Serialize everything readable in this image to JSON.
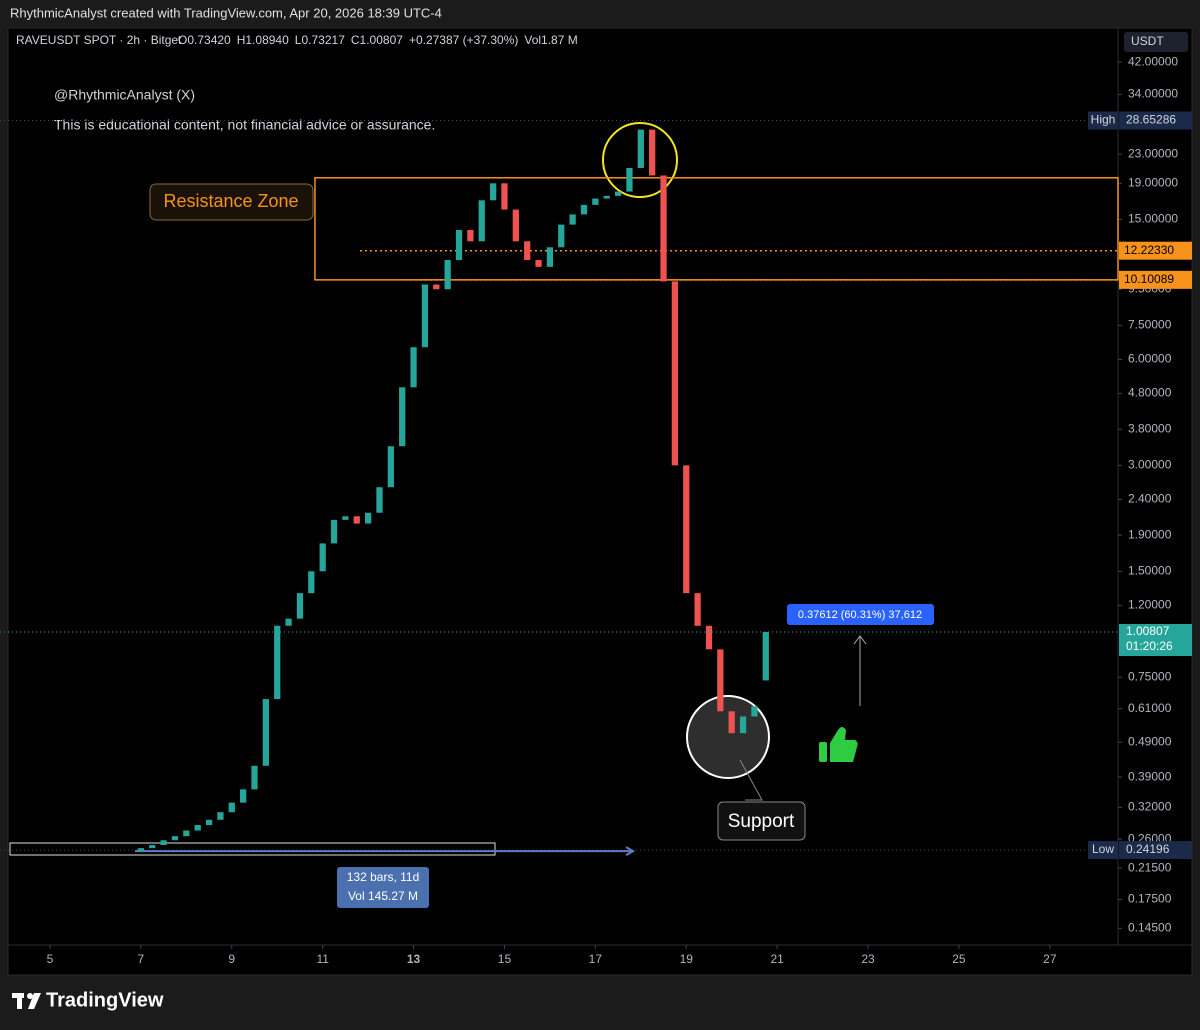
{
  "chart_data": {
    "type": "candlestick",
    "title": "RhythmicAnalyst created with TradingView.com, Apr 20, 2026 18:39 UTC-4",
    "symbol": "RAVEUSDT SPOT · 2h · Bitget",
    "legend_fields": [
      {
        "key": "O",
        "value": "0.73420"
      },
      {
        "key": "H",
        "value": "1.08940"
      },
      {
        "key": "L",
        "value": "0.73217"
      },
      {
        "key": "C",
        "value": "1.00807"
      }
    ],
    "change": "+0.27387 (+37.30%)",
    "volume": {
      "key": "Vol",
      "value": "1.87 M"
    },
    "currency": "USDT",
    "notes": [
      "@RhythmicAnalyst (X)",
      "This is educational content, not financial advice or assurance."
    ],
    "x": [
      7,
      7.25,
      7.5,
      7.75,
      8,
      8.25,
      8.5,
      8.75,
      9,
      9.25,
      9.5,
      9.75,
      10,
      10.25,
      10.5,
      10.75,
      11,
      11.25,
      11.5,
      11.75,
      12,
      12.25,
      12.5,
      12.75,
      13,
      13.25,
      13.5,
      13.75,
      14,
      14.25,
      14.5,
      14.75,
      15,
      15.25,
      15.5,
      15.75,
      16,
      16.25,
      16.5,
      16.75,
      17,
      17.25,
      17.5,
      17.75,
      18,
      18.25,
      18.5,
      18.75,
      19,
      19.25,
      19.5,
      19.75,
      20,
      20.25,
      20.5,
      20.75
    ],
    "open": [
      0.24,
      0.245,
      0.25,
      0.258,
      0.265,
      0.275,
      0.285,
      0.295,
      0.31,
      0.33,
      0.36,
      0.42,
      0.65,
      1.05,
      1.1,
      1.3,
      1.5,
      1.8,
      2.1,
      2.15,
      2.05,
      2.2,
      2.6,
      3.4,
      5,
      6.5,
      9.8,
      9.5,
      11.5,
      14,
      13,
      17,
      19,
      16,
      13,
      11.5,
      11,
      12.5,
      14.5,
      15.5,
      16.5,
      17.2,
      17.5,
      18,
      21,
      27,
      20,
      10,
      3,
      1.3,
      1.05,
      0.9,
      0.6,
      0.52,
      0.58,
      0.7342
    ],
    "high": {
      "name": "High",
      "value": 28.65286
    },
    "low": {
      "name": "Low",
      "value": 0.24196
    },
    "close": [
      0.245,
      0.25,
      0.258,
      0.265,
      0.275,
      0.285,
      0.295,
      0.31,
      0.33,
      0.36,
      0.42,
      0.65,
      1.05,
      1.1,
      1.3,
      1.5,
      1.8,
      2.1,
      2.15,
      2.05,
      2.2,
      2.6,
      3.4,
      5,
      6.5,
      9.8,
      9.5,
      11.5,
      14,
      13,
      17,
      19,
      16,
      13,
      11.5,
      11,
      12.5,
      14.5,
      15.5,
      16.5,
      17.2,
      17.5,
      18,
      21,
      27,
      20,
      10,
      3,
      1.3,
      1.05,
      0.9,
      0.6,
      0.52,
      0.58,
      0.62,
      1.00807
    ],
    "up_color": "#26a69a",
    "down_color": "#ef5350",
    "log_scale": true,
    "xlim": [
      3.9,
      28.5
    ],
    "xticks": [
      5,
      7,
      9,
      11,
      13,
      15,
      17,
      19,
      21,
      23,
      25,
      27
    ],
    "ylim": [
      0.13,
      52.5
    ],
    "yticks": [
      {
        "value": 42,
        "label": "42.00000"
      },
      {
        "value": 34,
        "label": "34.00000"
      },
      {
        "value": 23,
        "label": "23.00000"
      },
      {
        "value": 19,
        "label": "19.00000"
      },
      {
        "value": 15,
        "label": "15.00000"
      },
      {
        "value": 9.5,
        "label": "9.50000"
      },
      {
        "value": 7.5,
        "label": "7.50000"
      },
      {
        "value": 6,
        "label": "6.00000"
      },
      {
        "value": 4.8,
        "label": "4.80000"
      },
      {
        "value": 3.8,
        "label": "3.80000"
      },
      {
        "value": 3,
        "label": "3.00000"
      },
      {
        "value": 2.4,
        "label": "2.40000"
      },
      {
        "value": 1.9,
        "label": "1.90000"
      },
      {
        "value": 1.5,
        "label": "1.50000"
      },
      {
        "value": 1.2,
        "label": "1.20000"
      },
      {
        "value": 0.75,
        "label": "0.75000"
      },
      {
        "value": 0.61,
        "label": "0.61000"
      },
      {
        "value": 0.49,
        "label": "0.49000"
      },
      {
        "value": 0.39,
        "label": "0.39000"
      },
      {
        "value": 0.32,
        "label": "0.32000"
      },
      {
        "value": 0.26,
        "label": "0.26000"
      },
      {
        "value": 0.215,
        "label": "0.21500"
      },
      {
        "value": 0.175,
        "label": "0.17500"
      },
      {
        "value": 0.145,
        "label": "0.14500"
      }
    ],
    "resistance_zone": {
      "label": "Resistance Zone",
      "from_x": 10.83,
      "top": 19.7,
      "bottom": 10.10089
    },
    "levels": [
      {
        "value": 12.2233,
        "label": "12.22330",
        "from_x": 11.82
      },
      {
        "value": 10.10089,
        "label": "10.10089",
        "from_x": 12.81
      }
    ],
    "countdown": "01:20:26",
    "measure": {
      "from_x": 6.87,
      "to_x": 17.83,
      "lines": [
        "132 bars, 11d",
        "Vol 145.27 M"
      ]
    },
    "projection_label": "0.37612 (60.31%) 37,612",
    "support_label": "Support",
    "brand": "TradingView"
  }
}
